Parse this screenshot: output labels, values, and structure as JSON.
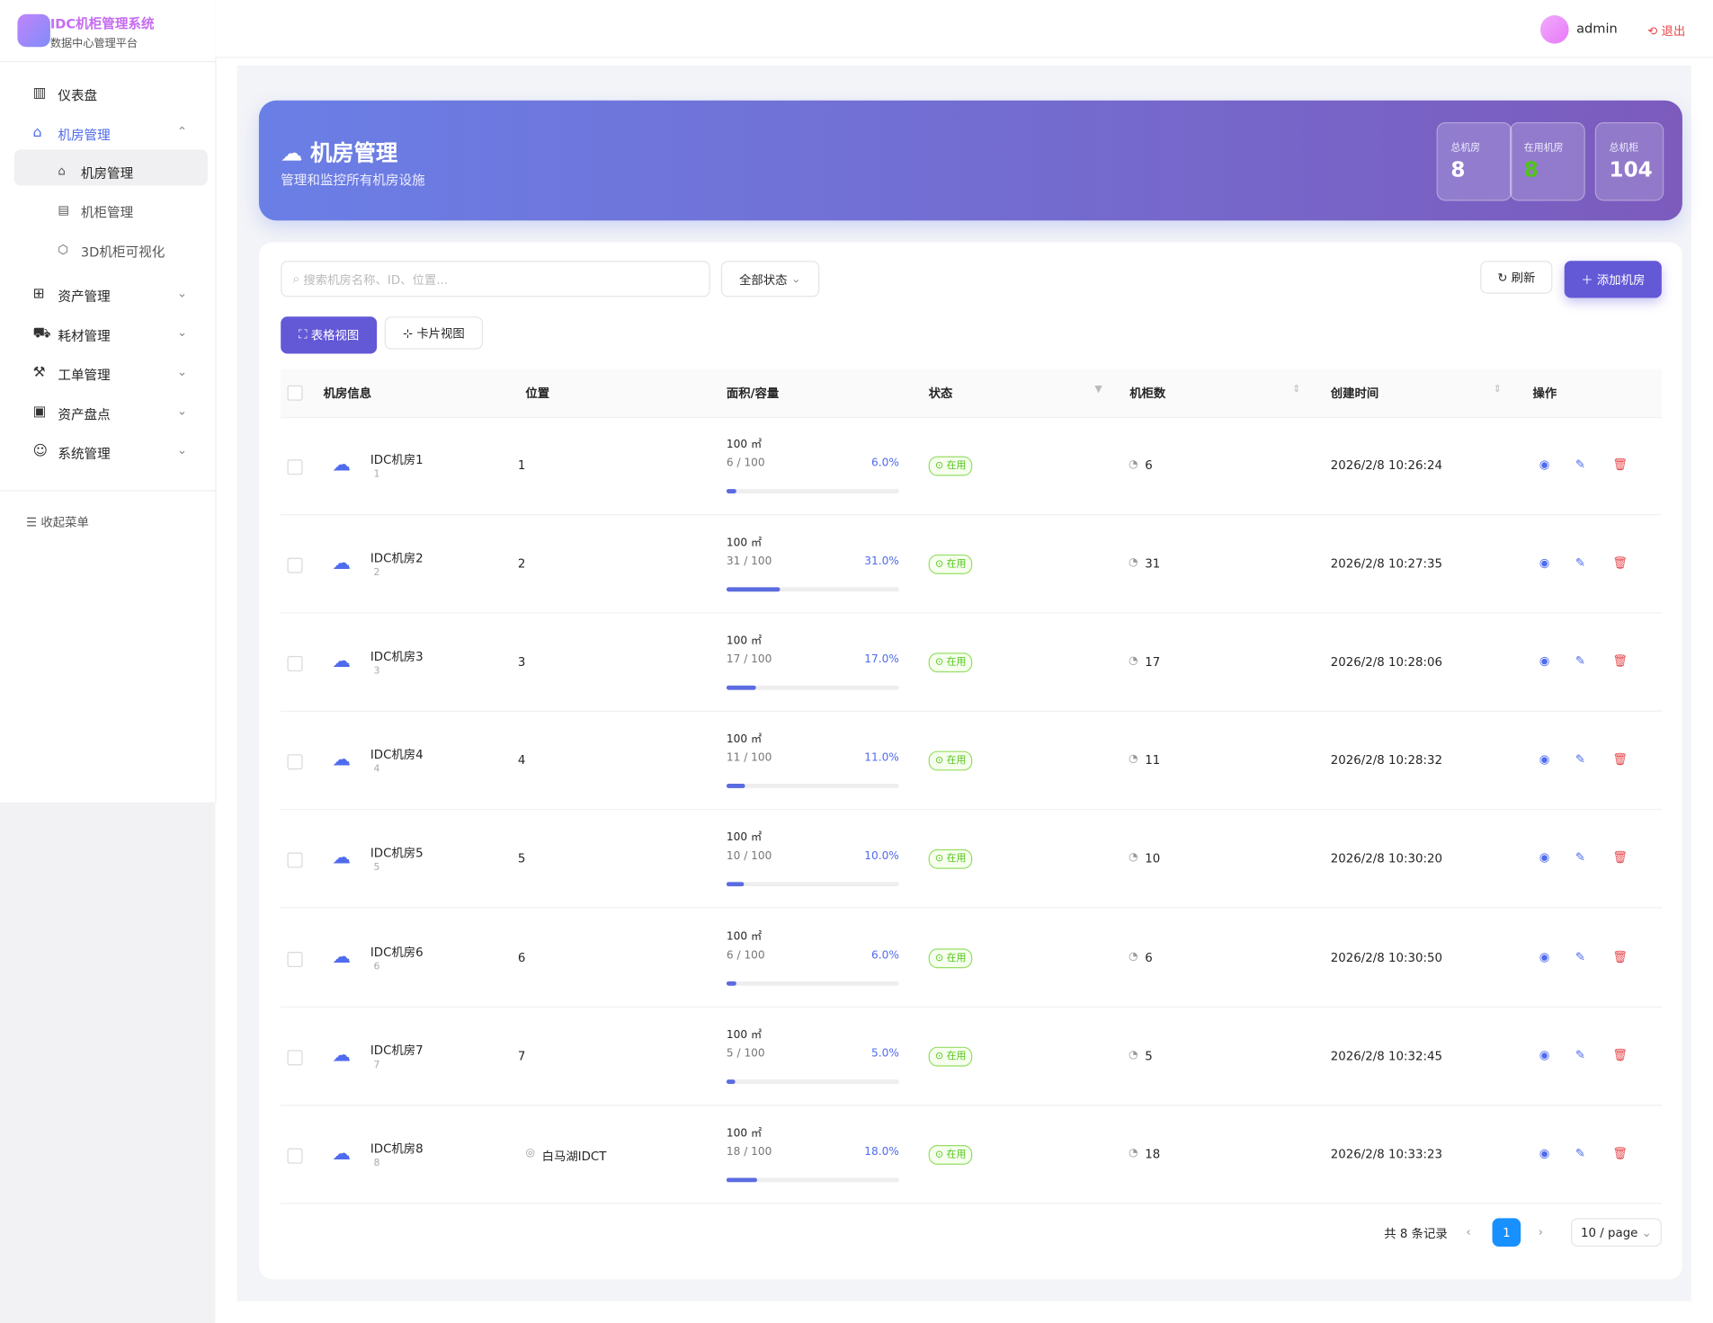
{
  "header": {
    "logo_title": "IDC机柜管理系统",
    "logo_subtitle": "数据中心管理平台",
    "user": "admin",
    "logout": "退出"
  },
  "sidebar": {
    "items": [
      {
        "label": "仪表盘"
      },
      {
        "label": "机房管理",
        "children": [
          "机房管理",
          "机柜管理",
          "3D机柜可视化"
        ]
      },
      {
        "label": "资产管理"
      },
      {
        "label": "耗材管理"
      },
      {
        "label": "工单管理"
      },
      {
        "label": "资产盘点"
      },
      {
        "label": "系统管理"
      }
    ],
    "collapse": "收起菜单"
  },
  "banner": {
    "title": "机房管理",
    "subtitle": "管理和监控所有机房设施",
    "stats": [
      {
        "label": "总机房",
        "value": "8"
      },
      {
        "label": "在用机房",
        "value": "8"
      },
      {
        "label": "总机柜",
        "value": "104"
      }
    ]
  },
  "toolbar": {
    "search_placeholder": "搜索机房名称、ID、位置...",
    "status_filter": "全部状态",
    "refresh": "刷新",
    "add": "添加机房",
    "views": [
      "表格视图",
      "卡片视图"
    ]
  },
  "table": {
    "columns": [
      "机房信息",
      "位置",
      "面积/容量",
      "状态",
      "机柜数",
      "创建时间",
      "操作"
    ],
    "rows": [
      {
        "name": "IDC机房1",
        "id": "1",
        "location": "1",
        "area": "100 ㎡",
        "usage": "6 / 100",
        "percent": "6.0%",
        "status": "在用",
        "cabinets": "6",
        "created": "2026/2/8 10:26:24"
      },
      {
        "name": "IDC机房2",
        "id": "2",
        "location": "2",
        "area": "100 ㎡",
        "usage": "31 / 100",
        "percent": "31.0%",
        "status": "在用",
        "cabinets": "31",
        "created": "2026/2/8 10:27:35"
      },
      {
        "name": "IDC机房3",
        "id": "3",
        "location": "3",
        "area": "100 ㎡",
        "usage": "17 / 100",
        "percent": "17.0%",
        "status": "在用",
        "cabinets": "17",
        "created": "2026/2/8 10:28:06"
      },
      {
        "name": "IDC机房4",
        "id": "4",
        "location": "4",
        "area": "100 ㎡",
        "usage": "11 / 100",
        "percent": "11.0%",
        "status": "在用",
        "cabinets": "11",
        "created": "2026/2/8 10:28:32"
      },
      {
        "name": "IDC机房5",
        "id": "5",
        "location": "5",
        "area": "100 ㎡",
        "usage": "10 / 100",
        "percent": "10.0%",
        "status": "在用",
        "cabinets": "10",
        "created": "2026/2/8 10:30:20"
      },
      {
        "name": "IDC机房6",
        "id": "6",
        "location": "6",
        "area": "100 ㎡",
        "usage": "6 / 100",
        "percent": "6.0%",
        "status": "在用",
        "cabinets": "6",
        "created": "2026/2/8 10:30:50"
      },
      {
        "name": "IDC机房7",
        "id": "7",
        "location": "7",
        "area": "100 ㎡",
        "usage": "5 / 100",
        "percent": "5.0%",
        "status": "在用",
        "cabinets": "5",
        "created": "2026/2/8 10:32:45"
      },
      {
        "name": "IDC机房8",
        "id": "8",
        "location": "白马湖IDCT",
        "area": "100 ㎡",
        "usage": "18 / 100",
        "percent": "18.0%",
        "status": "在用",
        "cabinets": "18",
        "created": "2026/2/8 10:33:23"
      }
    ]
  },
  "pagination": {
    "total": "共 8 条记录",
    "current": "1",
    "page_size": "10 / page"
  }
}
